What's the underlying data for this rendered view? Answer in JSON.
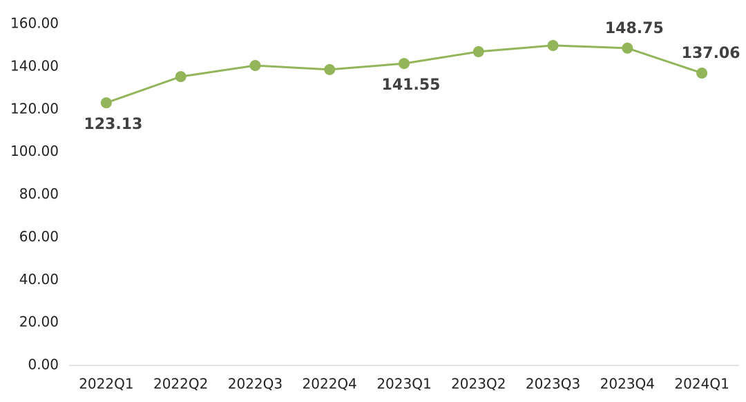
{
  "chart_data": {
    "type": "line",
    "categories": [
      "2022Q1",
      "2022Q2",
      "2022Q3",
      "2022Q4",
      "2023Q1",
      "2023Q2",
      "2023Q3",
      "2023Q4",
      "2024Q1"
    ],
    "values": [
      123.13,
      135.4,
      140.6,
      138.7,
      141.55,
      147.1,
      150.0,
      148.75,
      137.06
    ],
    "value_labels": [
      "123.13",
      null,
      null,
      null,
      "141.55",
      null,
      null,
      "148.75",
      "137.06"
    ],
    "color": "#93b55a",
    "ylim": [
      0,
      160
    ],
    "yticks": [
      {
        "value": 0,
        "label": "0.00"
      },
      {
        "value": 20,
        "label": "20.00"
      },
      {
        "value": 40,
        "label": "40.00"
      },
      {
        "value": 60,
        "label": "60.00"
      },
      {
        "value": 80,
        "label": "80.00"
      },
      {
        "value": 100,
        "label": "100.00"
      },
      {
        "value": 120,
        "label": "120.00"
      },
      {
        "value": 140,
        "label": "140.00"
      },
      {
        "value": 160,
        "label": "160.00"
      }
    ],
    "grid": false
  }
}
